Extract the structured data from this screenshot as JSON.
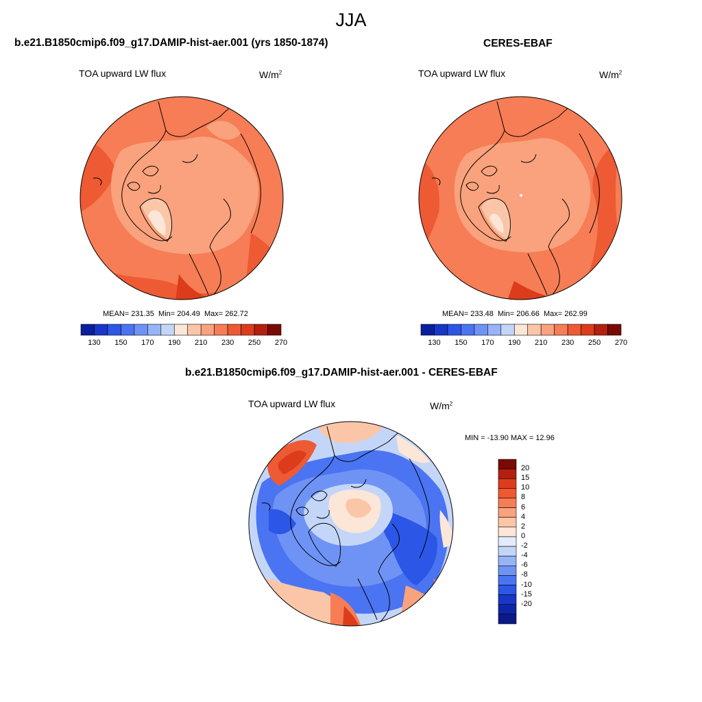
{
  "figure": {
    "season": "JJA"
  },
  "panels": {
    "model": {
      "title": "b.e21.B1850cmip6.f09_g17.DAMIP-hist-aer.001 (yrs 1850-1874)",
      "variable": "TOA upward LW flux",
      "units_base": "W/m",
      "units_exp": "2",
      "mean_label": "MEAN= 231.35",
      "min_label": "Min= 204.49",
      "max_label": "Max= 262.72"
    },
    "obs": {
      "title": "CERES-EBAF",
      "variable": "TOA upward LW flux",
      "units_base": "W/m",
      "units_exp": "2",
      "mean_label": "MEAN= 233.48",
      "min_label": "Min= 206.66",
      "max_label": "Max= 262.99"
    },
    "diff": {
      "title": "b.e21.B1850cmip6.f09_g17.DAMIP-hist-aer.001 - CERES-EBAF",
      "variable": "TOA upward LW flux",
      "units_base": "W/m",
      "units_exp": "2",
      "minmax_label": "MIN = -13.90 MAX =  12.96"
    }
  },
  "colorbars": {
    "abs": {
      "colors": [
        "#0a1f9c",
        "#1837c8",
        "#2c56e6",
        "#4a74f2",
        "#6f93f5",
        "#97b4f7",
        "#c4d6f8",
        "#fbe6d8",
        "#fbc6a8",
        "#f9a27d",
        "#f67d55",
        "#ee5a33",
        "#dc3c1c",
        "#b3200f",
        "#7a0a04"
      ],
      "labels": [
        "130",
        "150",
        "170",
        "190",
        "210",
        "230",
        "250",
        "270"
      ]
    },
    "diff": {
      "colors": [
        "#7a0a04",
        "#b3200f",
        "#dc3c1c",
        "#f0582e",
        "#f67d55",
        "#f9a27d",
        "#fbc6a8",
        "#fbe6d8",
        "#e4ecfb",
        "#c4d6f8",
        "#97b4f7",
        "#6f93f5",
        "#4a74f2",
        "#2c56e6",
        "#1837c8",
        "#0f25a8",
        "#0a1a88"
      ],
      "labels": [
        "20",
        "15",
        "10",
        "8",
        "6",
        "4",
        "2",
        "0",
        "-2",
        "-4",
        "-6",
        "-8",
        "-10",
        "-15",
        "-20"
      ]
    }
  }
}
